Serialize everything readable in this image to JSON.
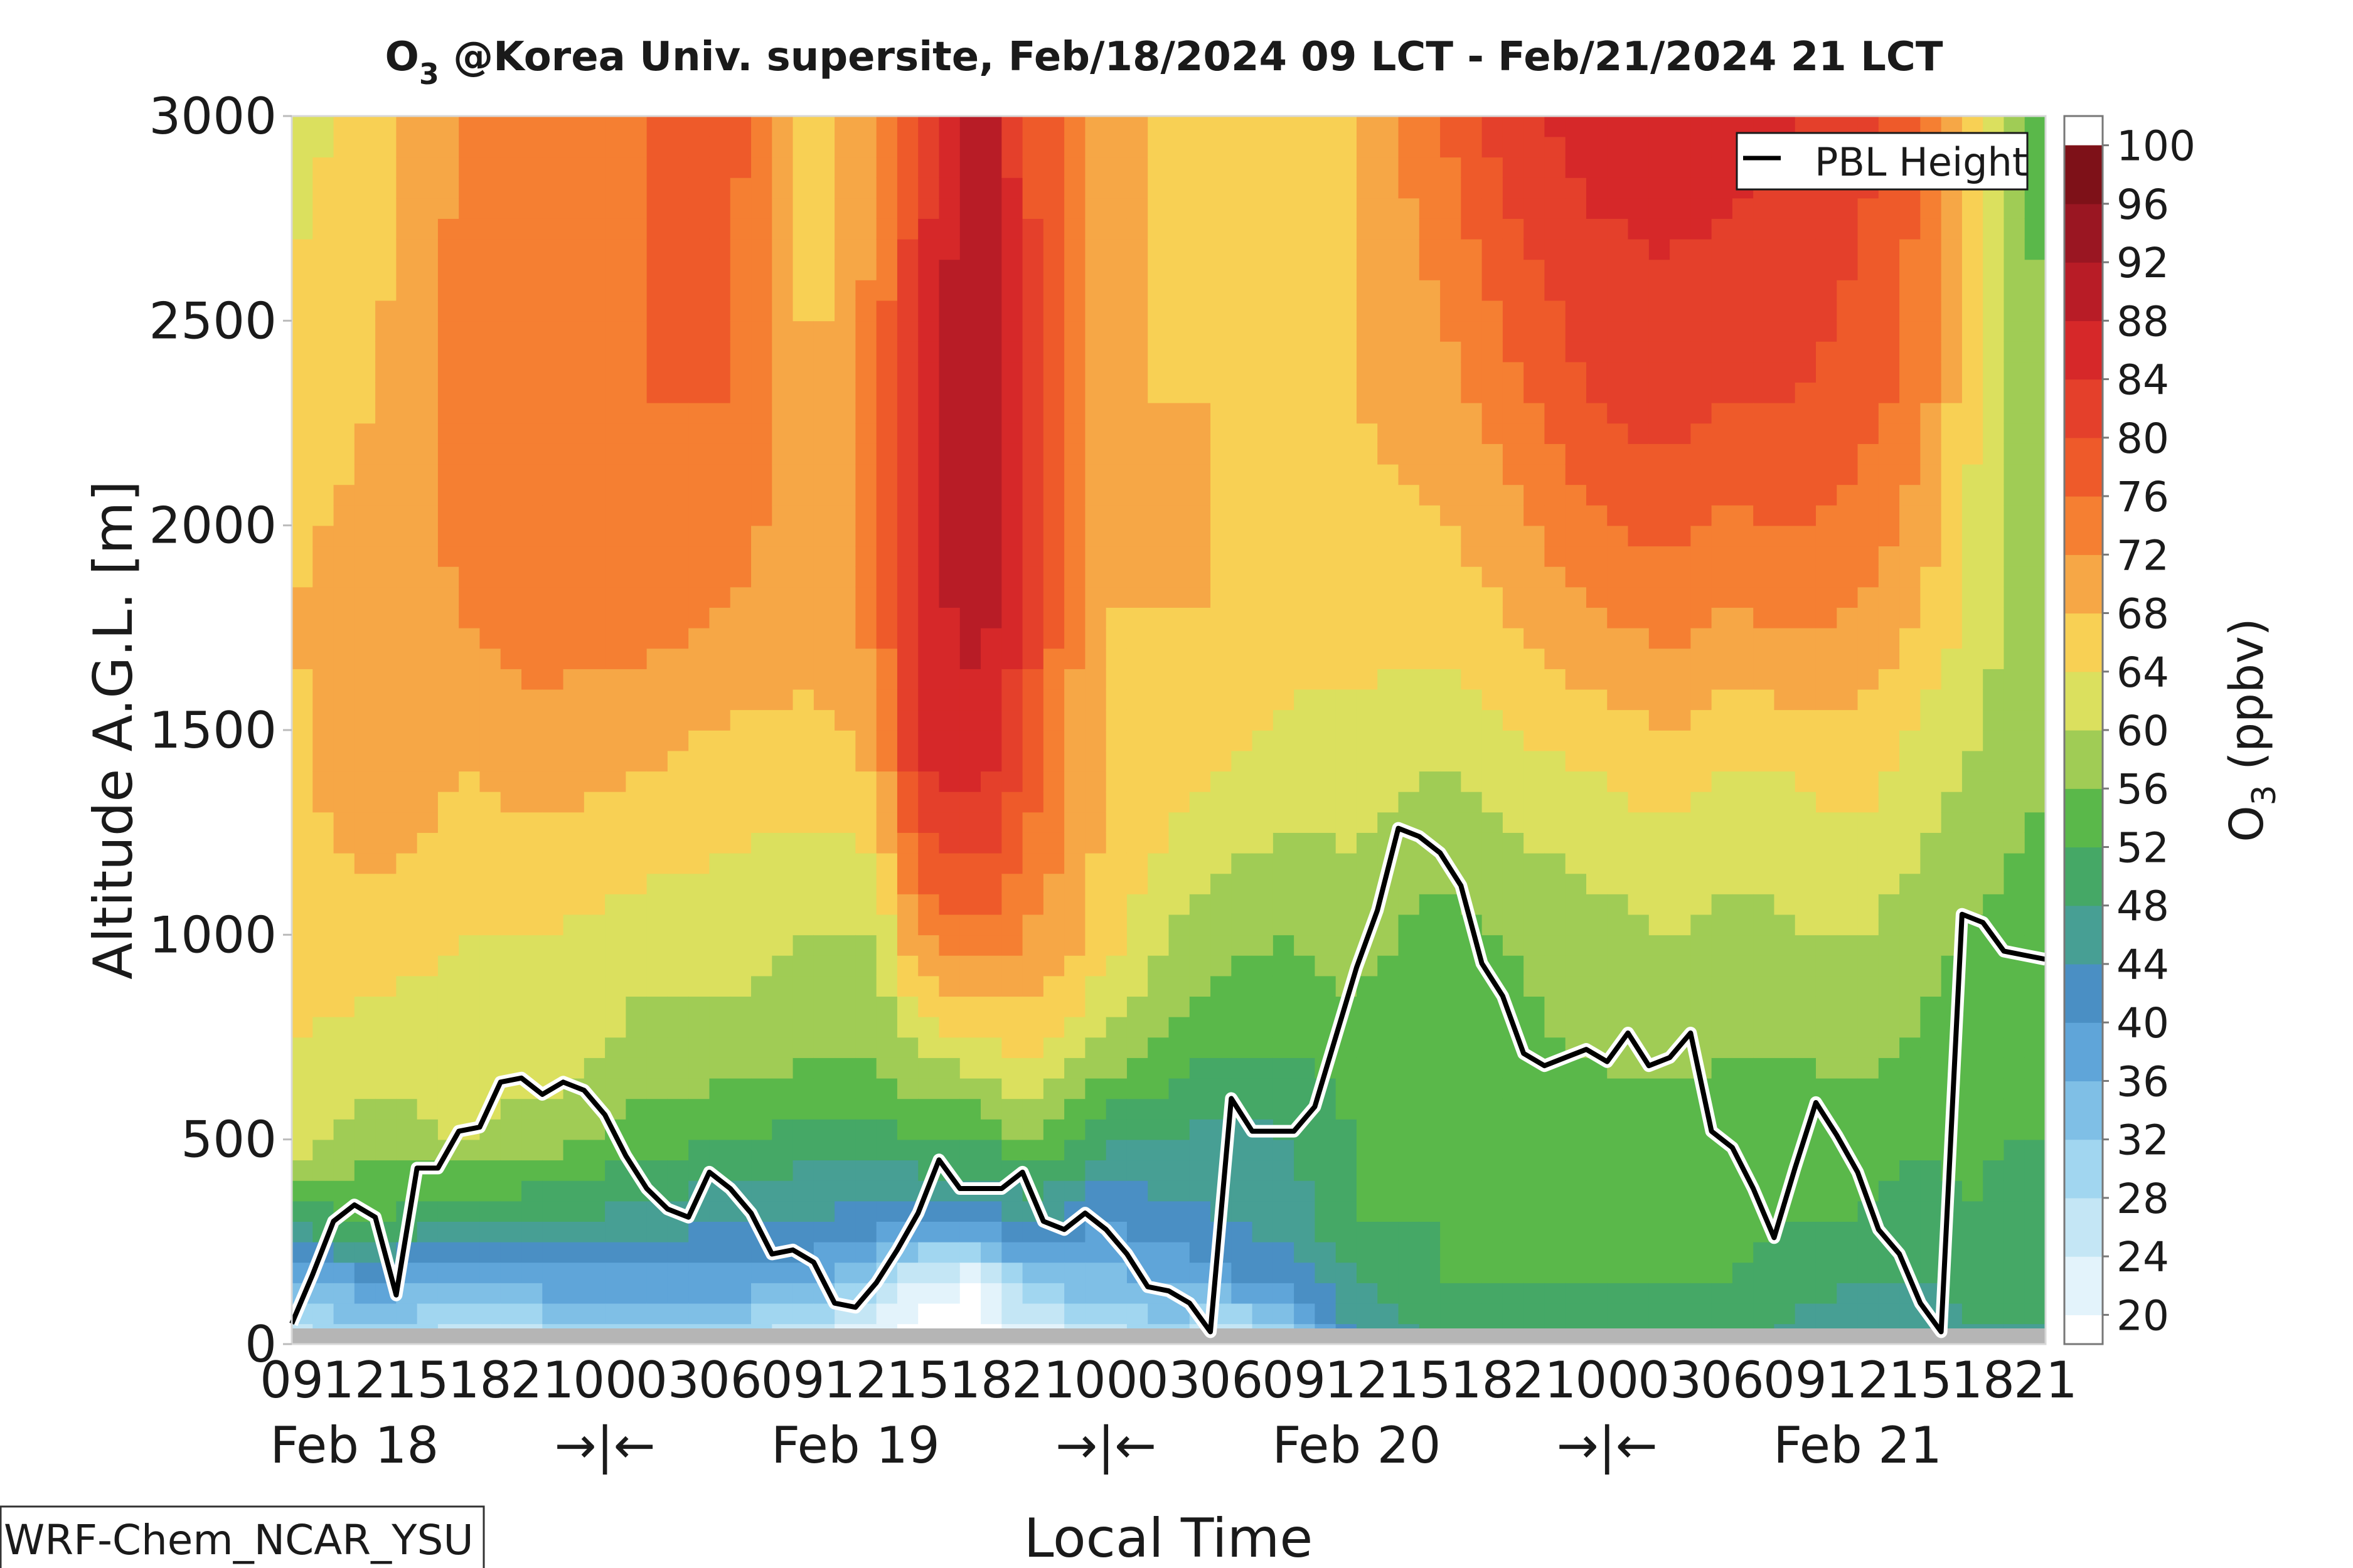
{
  "chart_data": {
    "type": "heatmap",
    "title_main": "O",
    "title_sub": "3",
    "title_rest": " @Korea Univ. supersite, Feb/18/2024 09 LCT - Feb/21/2024 21 LCT",
    "xlabel": "Local Time",
    "ylabel": "Altitude A.G.L. [m]",
    "colorbar_label_main": "O",
    "colorbar_label_sub": "3",
    "colorbar_label_rest": " (ppbv)",
    "legend_label": "PBL Height",
    "legend_placement": "top-right",
    "source_label": "WRF-Chem_NCAR_YSU",
    "ylim": [
      0,
      3000
    ],
    "y_ticks": [
      0,
      500,
      1000,
      1500,
      2000,
      2500,
      3000
    ],
    "x_hour_range": [
      0,
      84
    ],
    "x_tick_labels": [
      "09",
      "12",
      "15",
      "18",
      "21",
      "00",
      "03",
      "06",
      "09",
      "12",
      "15",
      "18",
      "21",
      "00",
      "03",
      "06",
      "09",
      "12",
      "15",
      "18",
      "21",
      "00",
      "03",
      "06",
      "09",
      "12",
      "15",
      "18",
      "21"
    ],
    "day_labels": [
      {
        "hour": 3,
        "text": "Feb 18"
      },
      {
        "hour": 27,
        "text": "Feb 19"
      },
      {
        "hour": 51,
        "text": "Feb 20"
      },
      {
        "hour": 75,
        "text": "Feb 21"
      }
    ],
    "midnight_markers": [
      {
        "hour": 15,
        "text": "→|←"
      },
      {
        "hour": 39,
        "text": "→|←"
      },
      {
        "hour": 63,
        "text": "→|←"
      }
    ],
    "colorbar": {
      "levels": [
        18,
        20,
        24,
        28,
        32,
        36,
        40,
        44,
        48,
        52,
        56,
        60,
        64,
        68,
        72,
        76,
        80,
        84,
        88,
        92,
        96,
        100,
        102
      ],
      "colors": [
        "#ffffff",
        "#e3f3fb",
        "#c4e6f5",
        "#a1d6f0",
        "#7fbfe6",
        "#5fa5d9",
        "#4a8fc4",
        "#479f94",
        "#45a866",
        "#5ab84a",
        "#a0cc55",
        "#dbe05e",
        "#f8d054",
        "#f6a746",
        "#f57f32",
        "#ee5a2a",
        "#e4402b",
        "#d62829",
        "#b81c26",
        "#9a1622",
        "#7e1118"
      ],
      "tick_labels": [
        20,
        24,
        28,
        32,
        36,
        40,
        44,
        48,
        52,
        56,
        60,
        64,
        68,
        72,
        76,
        80,
        84,
        88,
        92,
        96,
        100
      ]
    },
    "field_keypoints_hours": [
      0,
      4,
      8,
      12,
      17,
      21,
      25,
      28,
      30,
      33,
      35,
      37,
      39,
      42,
      44,
      48,
      51,
      55,
      58,
      62,
      66,
      69,
      72,
      75,
      78,
      80,
      82,
      84
    ],
    "profile_altitudes_m": [
      0,
      150,
      300,
      500,
      700,
      1000,
      1400,
      1800,
      2300,
      3000
    ],
    "o3_profiles_ppbv": [
      [
        26,
        36,
        50,
        62,
        64,
        66,
        67,
        68,
        66,
        62
      ],
      [
        28,
        38,
        52,
        58,
        62,
        66,
        72,
        70,
        68,
        66
      ],
      [
        26,
        36,
        48,
        60,
        62,
        64,
        68,
        72,
        74,
        72
      ],
      [
        26,
        38,
        48,
        58,
        62,
        64,
        70,
        74,
        76,
        74
      ],
      [
        28,
        38,
        46,
        54,
        58,
        62,
        68,
        74,
        76,
        76
      ],
      [
        28,
        38,
        44,
        52,
        58,
        62,
        66,
        72,
        76,
        78
      ],
      [
        24,
        36,
        44,
        50,
        56,
        60,
        66,
        70,
        68,
        64
      ],
      [
        20,
        30,
        42,
        50,
        56,
        60,
        68,
        74,
        74,
        72
      ],
      [
        18,
        22,
        42,
        52,
        60,
        72,
        84,
        86,
        86,
        80
      ],
      [
        18,
        20,
        42,
        52,
        62,
        76,
        86,
        90,
        92,
        94
      ],
      [
        20,
        32,
        44,
        56,
        64,
        72,
        80,
        84,
        84,
        80
      ],
      [
        22,
        34,
        42,
        54,
        62,
        70,
        72,
        74,
        76,
        76
      ],
      [
        26,
        34,
        40,
        48,
        58,
        66,
        68,
        68,
        68,
        70
      ],
      [
        30,
        36,
        42,
        48,
        54,
        60,
        66,
        68,
        68,
        66
      ],
      [
        20,
        38,
        44,
        46,
        52,
        58,
        64,
        68,
        68,
        68
      ],
      [
        30,
        42,
        46,
        48,
        52,
        56,
        62,
        66,
        66,
        66
      ],
      [
        44,
        48,
        52,
        52,
        54,
        58,
        62,
        66,
        68,
        68
      ],
      [
        48,
        52,
        52,
        52,
        53,
        54,
        60,
        66,
        70,
        76
      ],
      [
        50,
        52,
        53,
        54,
        55,
        56,
        62,
        68,
        74,
        82
      ],
      [
        50,
        52,
        53,
        54,
        56,
        58,
        64,
        72,
        80,
        86
      ],
      [
        50,
        52,
        53,
        54,
        57,
        60,
        66,
        74,
        82,
        86
      ],
      [
        50,
        52,
        53,
        54,
        56,
        58,
        64,
        72,
        80,
        86
      ],
      [
        46,
        50,
        52,
        53,
        56,
        60,
        64,
        74,
        80,
        84
      ],
      [
        44,
        48,
        52,
        54,
        57,
        60,
        66,
        72,
        78,
        82
      ],
      [
        44,
        48,
        50,
        52,
        55,
        58,
        62,
        68,
        74,
        76
      ],
      [
        46,
        50,
        52,
        53,
        54,
        56,
        60,
        64,
        66,
        68
      ],
      [
        46,
        50,
        51,
        52,
        53,
        55,
        58,
        60,
        60,
        58
      ],
      [
        46,
        50,
        51,
        52,
        53,
        54,
        56,
        56,
        56,
        54
      ]
    ],
    "pbl_height_series": {
      "name": "PBL Height",
      "x_hours": [
        0,
        1,
        2,
        3,
        4,
        5,
        6,
        7,
        8,
        9,
        10,
        11,
        12,
        13,
        14,
        15,
        16,
        17,
        18,
        19,
        20,
        21,
        22,
        23,
        24,
        25,
        26,
        27,
        28,
        29,
        30,
        31,
        32,
        33,
        34,
        35,
        36,
        37,
        38,
        39,
        40,
        41,
        42,
        43,
        44,
        45,
        46,
        47,
        48,
        49,
        50,
        51,
        52,
        53,
        54,
        55,
        56,
        57,
        58,
        59,
        60,
        61,
        62,
        63,
        64,
        65,
        66,
        67,
        68,
        69,
        70,
        71,
        72,
        73,
        74,
        75,
        76,
        77,
        78,
        79,
        80,
        81,
        82,
        83,
        84
      ],
      "y_m": [
        50,
        170,
        300,
        340,
        310,
        120,
        430,
        430,
        520,
        530,
        640,
        650,
        610,
        640,
        620,
        560,
        460,
        380,
        330,
        310,
        420,
        380,
        320,
        220,
        230,
        200,
        100,
        90,
        150,
        230,
        320,
        450,
        380,
        380,
        380,
        420,
        300,
        280,
        320,
        280,
        220,
        140,
        130,
        100,
        30,
        600,
        520,
        520,
        520,
        580,
        750,
        920,
        1060,
        1260,
        1240,
        1200,
        1120,
        930,
        850,
        710,
        680,
        700,
        720,
        690,
        760,
        680,
        700,
        760,
        520,
        480,
        380,
        260,
        430,
        590,
        510,
        420,
        280,
        220,
        100,
        30,
        1050,
        1030,
        960,
        950,
        940
      ]
    }
  }
}
